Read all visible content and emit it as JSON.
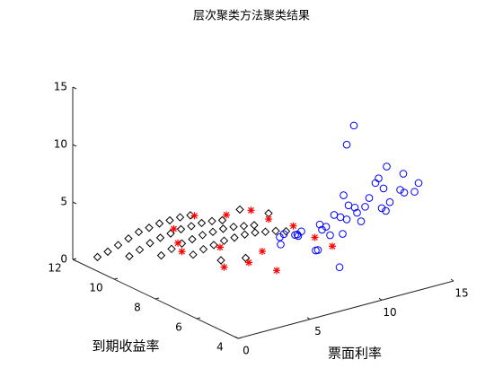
{
  "chart_data": {
    "type": "scatter3d",
    "title": "层次聚类方法聚类结果",
    "xlabel": "票面利率",
    "ylabel": "到期收益率",
    "xlim": [
      0,
      15
    ],
    "ylim": [
      4,
      12
    ],
    "zlim": [
      0,
      15
    ],
    "xticks": [
      0,
      5,
      10,
      15
    ],
    "yticks": [
      4,
      6,
      8,
      10,
      12
    ],
    "zticks": [
      0,
      5,
      10,
      15
    ],
    "series": [
      {
        "color": "#000000",
        "marker": "diamond",
        "x": [
          1,
          1,
          1,
          1,
          1,
          1,
          1,
          1,
          1,
          1,
          2.5,
          2.5,
          2.5,
          2.5,
          2.5,
          2.5,
          2.5,
          2.5,
          2.5,
          2.5,
          4,
          4,
          4,
          4,
          4,
          4,
          4,
          4,
          4,
          4,
          5.5,
          5.5,
          5.5,
          5.5,
          5.5,
          5.5,
          5.5,
          5.5,
          5.5,
          5.5,
          6,
          7,
          5,
          3
        ],
        "y": [
          11.5,
          11,
          10.5,
          10,
          9.5,
          9,
          8.5,
          8,
          7.5,
          7,
          11,
          10.5,
          10,
          9.5,
          9,
          8.5,
          8,
          7.5,
          7,
          6.5,
          10.5,
          10,
          9.5,
          9,
          8.5,
          8,
          7.5,
          7,
          6.5,
          6,
          10,
          9.5,
          9,
          8.5,
          8,
          7.5,
          7,
          6.5,
          6,
          5.5,
          9,
          8.5,
          6,
          6
        ],
        "z": [
          0.3,
          1.2,
          2.2,
          3.2,
          4.2,
          5,
          5.8,
          6.5,
          7.2,
          7.8,
          0.3,
          1.3,
          2.3,
          3.2,
          4,
          4.8,
          5.5,
          6.2,
          6.8,
          7.3,
          0.3,
          1.3,
          2.2,
          3,
          3.8,
          4.5,
          5.2,
          5.8,
          6.3,
          6.8,
          0.3,
          1.2,
          2,
          2.8,
          3.5,
          4.2,
          4.8,
          5.3,
          5.8,
          6.2,
          0.5,
          0.8,
          7.5,
          8.5
        ]
      },
      {
        "color": "#0000ff",
        "marker": "circle",
        "x": [
          7,
          8,
          9,
          10,
          11,
          12,
          9,
          8,
          10,
          11,
          13,
          12,
          10,
          9,
          7.5,
          8.5,
          6.5,
          11,
          12,
          13,
          10,
          9,
          8,
          11,
          12.5,
          10.5,
          9.5,
          8,
          7,
          11.5,
          10,
          12,
          9,
          13,
          11,
          8.5,
          14,
          9,
          9.5
        ],
        "y": [
          6,
          5.5,
          6,
          5,
          5.5,
          5,
          5,
          6.5,
          6,
          4.5,
          5,
          4.5,
          4,
          4.5,
          7,
          7,
          6.5,
          6,
          6,
          6,
          7,
          7.5,
          7.5,
          5,
          5.5,
          4.5,
          5.5,
          4.5,
          5,
          4,
          6.5,
          7,
          6.5,
          4.5,
          7,
          5,
          5,
          5,
          5
        ],
        "z": [
          5,
          5.5,
          5,
          6,
          6.5,
          7,
          6.5,
          4.5,
          5.5,
          7,
          7.5,
          8.5,
          8,
          7.5,
          4,
          3.5,
          4.5,
          6,
          6.5,
          7,
          4,
          3,
          2.5,
          9,
          9.5,
          10,
          8,
          6,
          4.5,
          10.5,
          3.5,
          5,
          2.5,
          8,
          4.5,
          2.5,
          8,
          13,
          14.5
        ]
      },
      {
        "color": "#ff0000",
        "marker": "asterisk",
        "x": [
          2,
          3.5,
          4.5,
          5,
          6,
          3,
          4.5,
          6,
          6.5,
          5.5,
          7,
          7.5,
          8,
          2,
          4
        ],
        "y": [
          7.5,
          7,
          6.5,
          6,
          5.5,
          9,
          8,
          7,
          8,
          8.5,
          7,
          5.5,
          5,
          8.5,
          9.5
        ],
        "z": [
          7,
          7,
          7.5,
          7,
          6.5,
          3,
          3,
          3,
          1,
          0.5,
          1,
          5,
          4.5,
          5,
          1.5
        ]
      }
    ]
  }
}
